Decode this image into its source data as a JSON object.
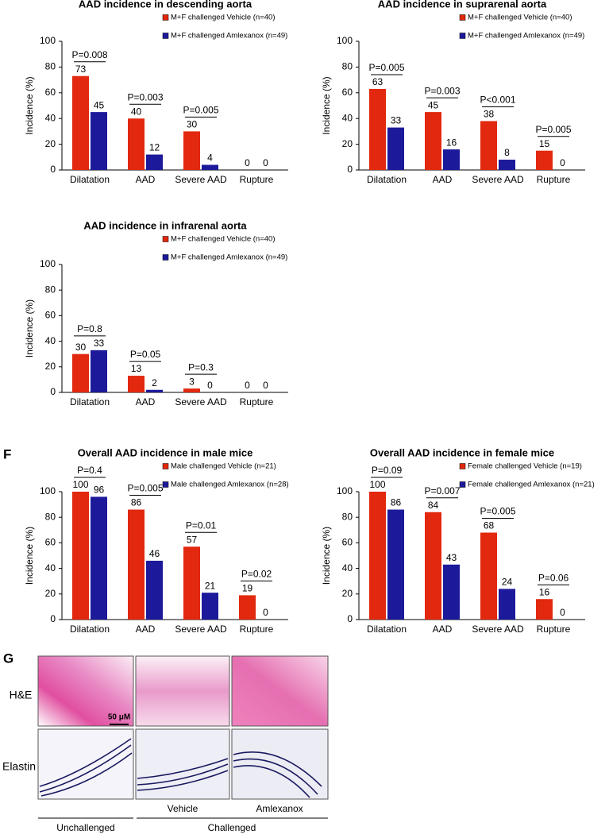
{
  "chart_data": [
    {
      "type": "bar",
      "title": "AAD incidence in descending aorta",
      "ylabel": "Incidence (%)",
      "categories": [
        "Dilatation",
        "AAD",
        "Severe AAD",
        "Rupture"
      ],
      "series": [
        {
          "name": "M+F  challenged Vehicle (n=40)",
          "color": "#e2280e",
          "values": [
            73,
            40,
            30,
            0
          ]
        },
        {
          "name": "M+F  challenged Amlexanox (n=49)",
          "color": "#1c1a9a",
          "values": [
            45,
            12,
            4,
            0
          ]
        }
      ],
      "annotations": [
        "P=0.008",
        "P=0.003",
        "P=0.005",
        null
      ],
      "ylim": [
        0,
        100
      ],
      "yticks": [
        0,
        20,
        40,
        60,
        80,
        100
      ]
    },
    {
      "type": "bar",
      "title": "AAD incidence in suprarenal aorta",
      "ylabel": "Incidence (%)",
      "categories": [
        "Dilatation",
        "AAD",
        "Severe AAD",
        "Rupture"
      ],
      "series": [
        {
          "name": "M+F  challenged Vehicle (n=40)",
          "color": "#e2280e",
          "values": [
            63,
            45,
            38,
            15
          ]
        },
        {
          "name": "M+F  challenged Amlexanox (n=49)",
          "color": "#1c1a9a",
          "values": [
            33,
            16,
            8,
            0
          ]
        }
      ],
      "annotations": [
        "P=0.005",
        "P=0.003",
        "P<0.001",
        "P=0.005"
      ],
      "ylim": [
        0,
        100
      ],
      "yticks": [
        0,
        20,
        40,
        60,
        80,
        100
      ]
    },
    {
      "type": "bar",
      "title": "AAD incidence in infrarenal aorta",
      "ylabel": "Incidence (%)",
      "categories": [
        "Dilatation",
        "AAD",
        "Severe AAD",
        "Rupture"
      ],
      "series": [
        {
          "name": "M+F  challenged Vehicle (n=40)",
          "color": "#e2280e",
          "values": [
            30,
            13,
            3,
            0
          ]
        },
        {
          "name": "M+F  challenged Amlexanox (n=49)",
          "color": "#1c1a9a",
          "values": [
            33,
            2,
            0,
            0
          ]
        }
      ],
      "annotations": [
        "P=0.8",
        "P=0.05",
        "P=0.3",
        null
      ],
      "ylim": [
        0,
        100
      ],
      "yticks": [
        0,
        20,
        40,
        60,
        80,
        100
      ]
    },
    {
      "type": "bar",
      "title": "Overall AAD incidence in male mice",
      "ylabel": "Incidence (%)",
      "categories": [
        "Dilatation",
        "AAD",
        "Severe AAD",
        "Rupture"
      ],
      "series": [
        {
          "name": "Male  challenged Vehicle (n=21)",
          "color": "#e2280e",
          "values": [
            100,
            86,
            57,
            19
          ]
        },
        {
          "name": "Male  challenged Amlexanox (n=28)",
          "color": "#1c1a9a",
          "values": [
            96,
            46,
            21,
            0
          ]
        }
      ],
      "annotations": [
        "P=0.4",
        "P=0.005",
        "P=0.01",
        "P=0.02"
      ],
      "ylim": [
        0,
        100
      ],
      "yticks": [
        0,
        20,
        40,
        60,
        80,
        100
      ]
    },
    {
      "type": "bar",
      "title": "Overall AAD incidence in female mice",
      "ylabel": "Incidence (%)",
      "categories": [
        "Dilatation",
        "AAD",
        "Severe AAD",
        "Rupture"
      ],
      "series": [
        {
          "name": "Female  challenged Vehicle (n=19)",
          "color": "#e2280e",
          "values": [
            100,
            84,
            68,
            16
          ]
        },
        {
          "name": "Female  challenged Amlexanox (n=21)",
          "color": "#1c1a9a",
          "values": [
            86,
            43,
            24,
            0
          ]
        }
      ],
      "annotations": [
        "P=0.09",
        "P=0.007",
        "P=0.005",
        "P=0.06"
      ],
      "ylim": [
        0,
        100
      ],
      "yticks": [
        0,
        20,
        40,
        60,
        80,
        100
      ]
    }
  ],
  "panel_labels": [
    "F",
    "G"
  ],
  "histology": {
    "row_labels": [
      "H&E",
      "Elastin"
    ],
    "column_labels": [
      "Vehicle",
      "Amlexanox"
    ],
    "group_labels": [
      "Unchallenged",
      "Challenged"
    ],
    "scale_bar": "50 μM"
  }
}
